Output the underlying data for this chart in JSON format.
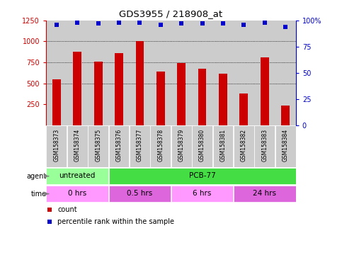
{
  "title": "GDS3955 / 218908_at",
  "samples": [
    "GSM158373",
    "GSM158374",
    "GSM158375",
    "GSM158376",
    "GSM158377",
    "GSM158378",
    "GSM158379",
    "GSM158380",
    "GSM158381",
    "GSM158382",
    "GSM158383",
    "GSM158384"
  ],
  "counts": [
    550,
    880,
    760,
    860,
    1000,
    640,
    740,
    670,
    610,
    380,
    810,
    230
  ],
  "percentile_ranks": [
    96,
    98,
    97,
    98,
    98,
    96,
    97,
    97,
    97,
    96,
    98,
    94
  ],
  "bar_color": "#cc0000",
  "dot_color": "#0000cc",
  "ylim_left": [
    0,
    1250
  ],
  "ylim_right": [
    0,
    100
  ],
  "yticks_left": [
    250,
    500,
    750,
    1000,
    1250
  ],
  "yticks_right": [
    0,
    25,
    50,
    75,
    100
  ],
  "gridline_ticks": [
    500,
    750,
    1000
  ],
  "agent_groups": [
    {
      "label": "untreated",
      "start": 0,
      "end": 3,
      "color": "#99ff99"
    },
    {
      "label": "PCB-77",
      "start": 3,
      "end": 12,
      "color": "#44dd44"
    }
  ],
  "time_groups": [
    {
      "label": "0 hrs",
      "start": 0,
      "end": 3,
      "color": "#ff99ff"
    },
    {
      "label": "0.5 hrs",
      "start": 3,
      "end": 6,
      "color": "#dd66dd"
    },
    {
      "label": "6 hrs",
      "start": 6,
      "end": 9,
      "color": "#ff99ff"
    },
    {
      "label": "24 hrs",
      "start": 9,
      "end": 12,
      "color": "#dd66dd"
    }
  ],
  "bg_color": "#ffffff",
  "sample_bg": "#cccccc",
  "legend_count_color": "#cc0000",
  "legend_dot_color": "#0000cc"
}
